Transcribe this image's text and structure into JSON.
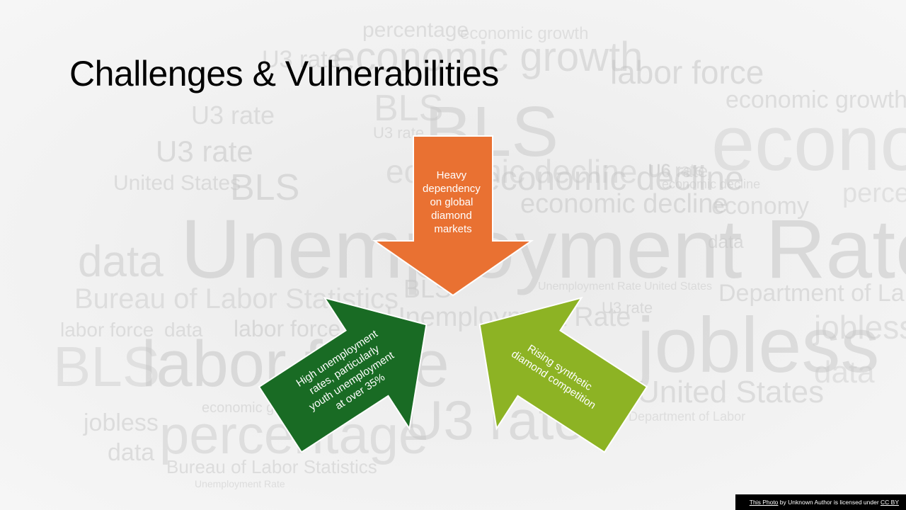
{
  "slide": {
    "title": "Challenges & Vulnerabilities"
  },
  "arrows": {
    "top": {
      "lines": [
        "Heavy",
        "dependency",
        "on global",
        "diamond",
        "markets"
      ],
      "color": "#E97132"
    },
    "left": {
      "lines": [
        "High unemployment",
        "rates, particularly",
        "youth unemployment",
        "at over 35%"
      ],
      "color": "#196B24"
    },
    "right": {
      "lines": [
        "Rising synthetic",
        "diamond competition"
      ],
      "color": "#8DB324"
    }
  },
  "credit": {
    "link": "This Photo",
    "middle": " by Unknown Author is licensed under ",
    "license": "CC BY"
  },
  "background_words": [
    "United States",
    "percentage",
    "economic growth",
    "labor force",
    "U3 rate",
    "economy",
    "BLS",
    "economic decline",
    "Unemployment Rate",
    "data",
    "Bureau of Labor Statistics",
    "jobless",
    "Department of Labor",
    "U6 rate"
  ]
}
